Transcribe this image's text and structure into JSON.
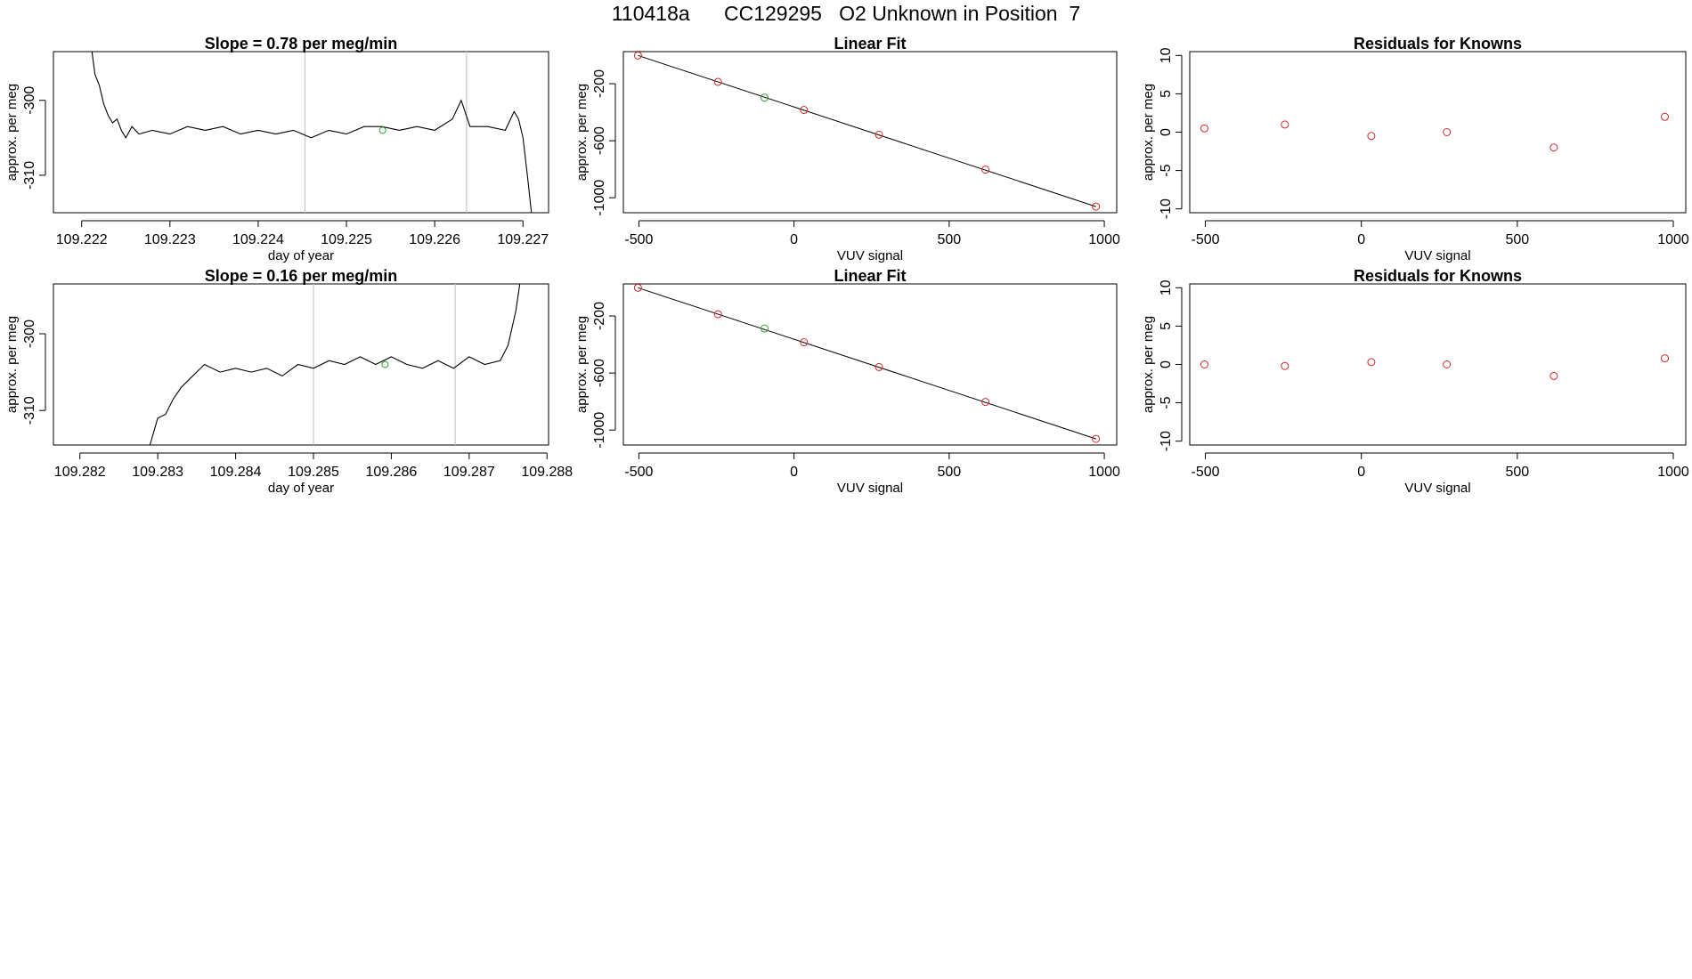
{
  "title": "110418a      CC129295   O2 Unknown in Position  7",
  "colors": {
    "trace": "#000000",
    "known_point": "#d62728",
    "unknown_point": "#2ca02c",
    "vline": "#c8c8c8",
    "frame": "#000000"
  },
  "chart_data": [
    {
      "type": "line",
      "title": "Slope =  0.78  per meg/min",
      "xlabel": "day of year",
      "ylabel": "approx. per meg",
      "xlim": [
        109.22168,
        109.22729
      ],
      "ylim": [
        -315.0,
        -293.5
      ],
      "xticks": [
        109.222,
        109.223,
        109.224,
        109.225,
        109.226,
        109.227
      ],
      "xtick_labels": [
        "109.222",
        "109.223",
        "109.224",
        "109.225",
        "109.226",
        "109.227"
      ],
      "yticks": [
        -300,
        -310
      ],
      "ytick_labels": [
        "-300",
        "-310"
      ],
      "vlines": [
        109.22453,
        109.22636
      ],
      "marker": {
        "x": 109.22541,
        "y": -304.0
      },
      "series": [
        {
          "name": "trace",
          "x": [
            109.2221,
            109.22215,
            109.2222,
            109.22225,
            109.2223,
            109.22235,
            109.2224,
            109.22245,
            109.2225,
            109.22257,
            109.22265,
            109.2228,
            109.223,
            109.2232,
            109.2234,
            109.2236,
            109.2238,
            109.224,
            109.2242,
            109.2244,
            109.2246,
            109.2248,
            109.225,
            109.2252,
            109.2254,
            109.2256,
            109.2258,
            109.226,
            109.2262,
            109.2263,
            109.2264,
            109.2266,
            109.2268,
            109.2269,
            109.22695,
            109.227,
            109.22705,
            109.2271
          ],
          "y": [
            -292.0,
            -296.5,
            -298.0,
            -300.5,
            -302.0,
            -303.0,
            -302.5,
            -304.0,
            -305.0,
            -303.5,
            -304.5,
            -304.0,
            -304.5,
            -303.5,
            -304.0,
            -303.5,
            -304.5,
            -304.0,
            -304.5,
            -304.0,
            -305.0,
            -304.0,
            -304.5,
            -303.5,
            -303.5,
            -304.0,
            -303.5,
            -304.0,
            -302.5,
            -300.0,
            -303.5,
            -303.5,
            -304.0,
            -301.5,
            -302.5,
            -305.0,
            -310.0,
            -315.5
          ]
        }
      ]
    },
    {
      "type": "scatter",
      "title": "Linear Fit",
      "xlabel": "VUV signal",
      "ylabel": "approx. per meg",
      "xlim": [
        -550,
        1040
      ],
      "ylim": [
        -1105,
        25
      ],
      "xticks": [
        -500,
        0,
        500,
        1000
      ],
      "xtick_labels": [
        "-500",
        "0",
        "500",
        "1000"
      ],
      "yticks": [
        -200,
        -600,
        -1000
      ],
      "ytick_labels": [
        "-200",
        "-600",
        "-1000"
      ],
      "fit_line": {
        "x": [
          -503,
          973
        ],
        "y": [
          -2,
          -1062
        ]
      },
      "series": [
        {
          "name": "knowns",
          "x": [
            -503,
            -245,
            32,
            274,
            617,
            973
          ],
          "y": [
            -2,
            -187,
            -384,
            -558,
            -803,
            -1062
          ]
        },
        {
          "name": "unknown",
          "x": [
            -95
          ],
          "y": [
            -298
          ]
        }
      ]
    },
    {
      "type": "scatter",
      "title": "Residuals for Knowns",
      "xlabel": "VUV signal",
      "ylabel": "approx. per meg",
      "xlim": [
        -550,
        1040
      ],
      "ylim": [
        -10.5,
        10.5
      ],
      "xticks": [
        -500,
        0,
        500,
        1000
      ],
      "xtick_labels": [
        "-500",
        "0",
        "500",
        "1000"
      ],
      "yticks": [
        -10,
        -5,
        0,
        5,
        10
      ],
      "ytick_labels": [
        "-10",
        "-5",
        "0",
        "5",
        "10"
      ],
      "series": [
        {
          "name": "residuals",
          "x": [
            -503,
            -245,
            32,
            274,
            617,
            973
          ],
          "y": [
            0.5,
            1.0,
            -0.5,
            0.0,
            -2.0,
            2.0
          ]
        }
      ]
    },
    {
      "type": "line",
      "title": "Slope =  0.16  per meg/min",
      "xlabel": "day of year",
      "ylabel": "approx. per meg",
      "xlim": [
        109.28166,
        109.28802
      ],
      "ylim": [
        -314.5,
        -293.5
      ],
      "xticks": [
        109.282,
        109.283,
        109.284,
        109.285,
        109.286,
        109.287,
        109.288
      ],
      "xtick_labels": [
        "109.282",
        "109.283",
        "109.284",
        "109.285",
        "109.286",
        "109.287",
        "109.288"
      ],
      "yticks": [
        -300,
        -310
      ],
      "yticks_note": "",
      "ytick_labels": [
        "-300",
        "-310"
      ],
      "vlines": [
        109.285,
        109.28682
      ],
      "marker": {
        "x": 109.28592,
        "y": -304.0
      },
      "series": [
        {
          "name": "trace",
          "x": [
            109.2829,
            109.283,
            109.2831,
            109.2832,
            109.2833,
            109.2834,
            109.2836,
            109.2838,
            109.284,
            109.2842,
            109.2844,
            109.2846,
            109.2848,
            109.285,
            109.2852,
            109.2854,
            109.2856,
            109.2858,
            109.286,
            109.2862,
            109.2864,
            109.2866,
            109.2868,
            109.287,
            109.2872,
            109.2874,
            109.2875,
            109.2876,
            109.28765
          ],
          "y": [
            -314.5,
            -311.0,
            -310.5,
            -308.5,
            -307.0,
            -306.0,
            -304.0,
            -305.0,
            -304.5,
            -305.0,
            -304.5,
            -305.5,
            -304.0,
            -304.5,
            -303.5,
            -304.0,
            -303.0,
            -304.0,
            -303.0,
            -304.0,
            -304.5,
            -303.5,
            -304.5,
            -303.0,
            -304.0,
            -303.5,
            -301.5,
            -297.0,
            -293.5
          ]
        }
      ]
    },
    {
      "type": "scatter",
      "title": "Linear Fit",
      "xlabel": "VUV signal",
      "ylabel": "approx. per meg",
      "xlim": [
        -550,
        1040
      ],
      "ylim": [
        -1105,
        25
      ],
      "xticks": [
        -500,
        0,
        500,
        1000
      ],
      "xtick_labels": [
        "-500",
        "0",
        "500",
        "1000"
      ],
      "yticks": [
        -200,
        -600,
        -1000
      ],
      "ytick_labels": [
        "-200",
        "-600",
        "-1000"
      ],
      "fit_line": {
        "x": [
          -503,
          973
        ],
        "y": [
          -2,
          -1062
        ]
      },
      "series": [
        {
          "name": "knowns",
          "x": [
            -503,
            -245,
            32,
            274,
            617,
            973
          ],
          "y": [
            -2,
            -187,
            -384,
            -558,
            -803,
            -1062
          ]
        },
        {
          "name": "unknown",
          "x": [
            -95
          ],
          "y": [
            -288
          ]
        }
      ]
    },
    {
      "type": "scatter",
      "title": "Residuals for Knowns",
      "xlabel": "VUV signal",
      "ylabel": "approx. per meg",
      "xlim": [
        -550,
        1040
      ],
      "ylim": [
        -10.5,
        10.5
      ],
      "xticks": [
        -500,
        0,
        500,
        1000
      ],
      "xtick_labels": [
        "-500",
        "0",
        "500",
        "1000"
      ],
      "yticks": [
        -10,
        -5,
        0,
        5,
        10
      ],
      "ytick_labels": [
        "-10",
        "-5",
        "0",
        "5",
        "10"
      ],
      "series": [
        {
          "name": "residuals",
          "x": [
            -503,
            -245,
            32,
            274,
            617,
            973
          ],
          "y": [
            0.0,
            -0.2,
            0.3,
            0.0,
            -1.5,
            0.8
          ]
        }
      ]
    }
  ]
}
